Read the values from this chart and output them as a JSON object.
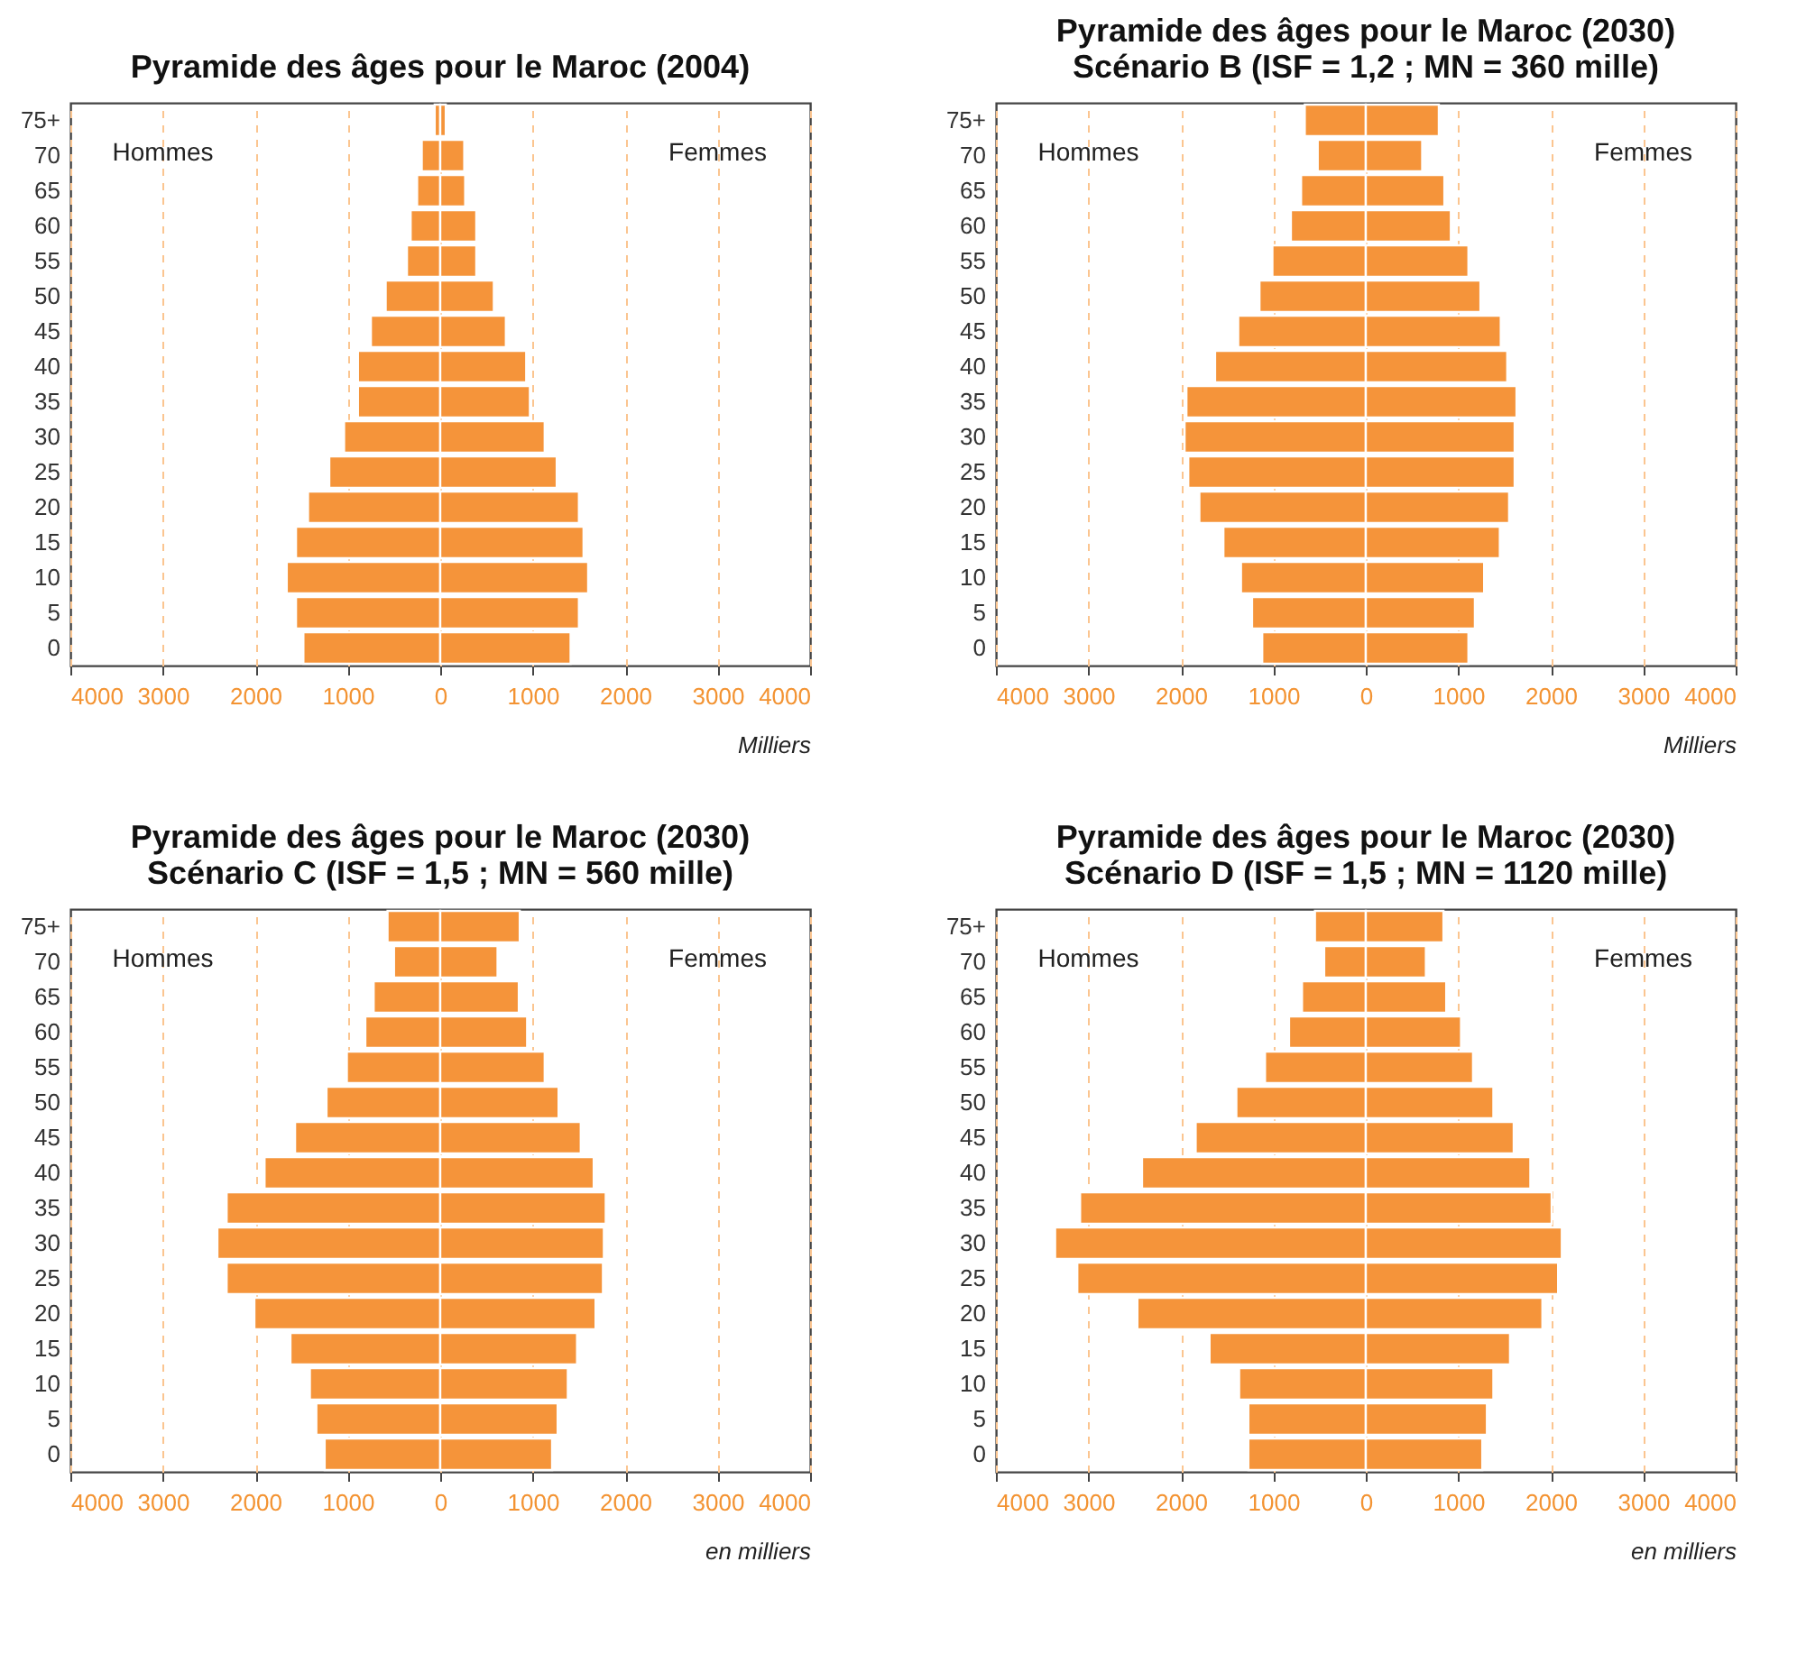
{
  "chart_data": [
    {
      "type": "bar",
      "orientation": "horizontal",
      "stacked": true,
      "title": "Pyramide des âges pour le Maroc (2004)",
      "xlabel": "Milliers",
      "grid": "x",
      "annotations": [
        "Hommes",
        "Femmes"
      ],
      "categories": [
        "75+",
        "70",
        "65",
        "60",
        "55",
        "50",
        "45",
        "40",
        "35",
        "30",
        "25",
        "20",
        "15",
        "10",
        "5",
        "0"
      ],
      "xlim": [
        -4000,
        4000
      ],
      "xticks": [
        {
          "value": -4000,
          "label": "4000"
        },
        {
          "value": -3000,
          "label": "3000"
        },
        {
          "value": -2000,
          "label": "2000"
        },
        {
          "value": -1000,
          "label": "1000"
        },
        0,
        1000,
        2000,
        3000,
        4000
      ],
      "series": [
        {
          "color": "#f5943a",
          "values": [
            -60,
            -200,
            -250,
            -320,
            -360,
            -590,
            -750,
            -890,
            -890,
            -1040,
            -1200,
            -1430,
            -1560,
            -1660,
            -1560,
            -1480
          ]
        },
        {
          "color": "#f5943a",
          "values": [
            60,
            260,
            270,
            390,
            390,
            580,
            710,
            930,
            970,
            1130,
            1260,
            1500,
            1550,
            1600,
            1500,
            1410
          ]
        }
      ]
    },
    {
      "type": "bar",
      "orientation": "horizontal",
      "stacked": true,
      "title": "Pyramide des âges pour le Maroc (2030)",
      "subtitle": "Scénario B (ISF = 1,2 ; MN = 360 mille)",
      "xlabel": "Milliers",
      "grid": "x",
      "annotations": [
        "Hommes",
        "Femmes"
      ],
      "categories": [
        "75+",
        "70",
        "65",
        "60",
        "55",
        "50",
        "45",
        "40",
        "35",
        "30",
        "25",
        "20",
        "15",
        "10",
        "5",
        "0"
      ],
      "xlim": [
        -4000,
        4000
      ],
      "xticks": [
        {
          "value": -4000,
          "label": "4000"
        },
        {
          "value": -3000,
          "label": "3000"
        },
        {
          "value": -2000,
          "label": "2000"
        },
        {
          "value": -1000,
          "label": "1000"
        },
        0,
        1000,
        2000,
        3000,
        4000
      ],
      "series": [
        {
          "color": "#f5943a",
          "values": [
            -660,
            -520,
            -700,
            -810,
            -1010,
            -1150,
            -1380,
            -1630,
            -1940,
            -1960,
            -1920,
            -1800,
            -1540,
            -1350,
            -1230,
            -1120
          ]
        },
        {
          "color": "#f5943a",
          "values": [
            790,
            610,
            850,
            920,
            1110,
            1240,
            1460,
            1530,
            1630,
            1610,
            1610,
            1550,
            1450,
            1280,
            1180,
            1110
          ]
        }
      ]
    },
    {
      "type": "bar",
      "orientation": "horizontal",
      "stacked": true,
      "title": "Pyramide des âges pour le Maroc (2030)",
      "subtitle": "Scénario C (ISF = 1,5 ; MN = 560 mille)",
      "xlabel": "en milliers",
      "grid": "x",
      "annotations": [
        "Hommes",
        "Femmes"
      ],
      "categories": [
        "75+",
        "70",
        "65",
        "60",
        "55",
        "50",
        "45",
        "40",
        "35",
        "30",
        "25",
        "20",
        "15",
        "10",
        "5",
        "0"
      ],
      "xlim": [
        -4000,
        4000
      ],
      "xticks": [
        {
          "value": -4000,
          "label": "4000"
        },
        {
          "value": -3000,
          "label": "3000"
        },
        {
          "value": -2000,
          "label": "2000"
        },
        {
          "value": -1000,
          "label": "1000"
        },
        0,
        1000,
        2000,
        3000,
        4000
      ],
      "series": [
        {
          "color": "#f5943a",
          "values": [
            -570,
            -500,
            -720,
            -810,
            -1010,
            -1230,
            -1570,
            -1900,
            -2310,
            -2410,
            -2310,
            -2010,
            -1620,
            -1410,
            -1340,
            -1250
          ]
        },
        {
          "color": "#f5943a",
          "values": [
            860,
            620,
            850,
            940,
            1130,
            1280,
            1520,
            1660,
            1790,
            1770,
            1760,
            1680,
            1480,
            1380,
            1270,
            1210
          ]
        }
      ]
    },
    {
      "type": "bar",
      "orientation": "horizontal",
      "stacked": true,
      "title": "Pyramide des âges pour le Maroc (2030)",
      "subtitle": "Scénario D (ISF = 1,5 ; MN = 1120 mille)",
      "xlabel": "en milliers",
      "grid": "x",
      "annotations": [
        "Hommes",
        "Femmes"
      ],
      "categories": [
        "75+",
        "70",
        "65",
        "60",
        "55",
        "50",
        "45",
        "40",
        "35",
        "30",
        "25",
        "20",
        "15",
        "10",
        "5",
        "0"
      ],
      "xlim": [
        -4000,
        4000
      ],
      "xticks": [
        {
          "value": -4000,
          "label": "4000"
        },
        {
          "value": -3000,
          "label": "3000"
        },
        {
          "value": -2000,
          "label": "2000"
        },
        {
          "value": -1000,
          "label": "1000"
        },
        0,
        1000,
        2000,
        3000,
        4000
      ],
      "series": [
        {
          "color": "#f5943a",
          "values": [
            -550,
            -450,
            -690,
            -830,
            -1090,
            -1400,
            -1840,
            -2420,
            -3090,
            -3360,
            -3120,
            -2470,
            -1690,
            -1370,
            -1270,
            -1270
          ]
        },
        {
          "color": "#f5943a",
          "values": [
            840,
            650,
            870,
            1030,
            1160,
            1380,
            1600,
            1780,
            2010,
            2120,
            2080,
            1910,
            1560,
            1380,
            1310,
            1260
          ]
        }
      ]
    }
  ]
}
